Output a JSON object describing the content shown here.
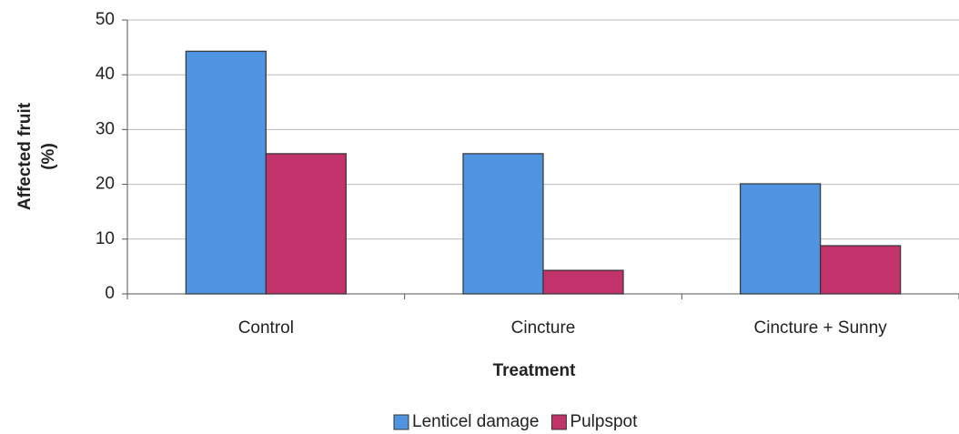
{
  "chart_data": {
    "type": "bar",
    "x_label": "Treatment",
    "y_label": [
      "Affected fruit",
      "(%)"
    ],
    "categories": [
      "Control",
      "Cincture",
      "Cincture + Sunny"
    ],
    "series": [
      {
        "name": "Lenticel damage",
        "color": "#4f94e0",
        "values": [
          44.3,
          25.6,
          20.1
        ]
      },
      {
        "name": "Pulpspot",
        "color": "#c2336b",
        "values": [
          25.6,
          4.3,
          8.8
        ]
      }
    ],
    "ylim": [
      0,
      50
    ],
    "yticks": [
      0,
      10,
      20,
      30,
      40,
      50
    ],
    "grid": true,
    "legend": "bottom"
  }
}
